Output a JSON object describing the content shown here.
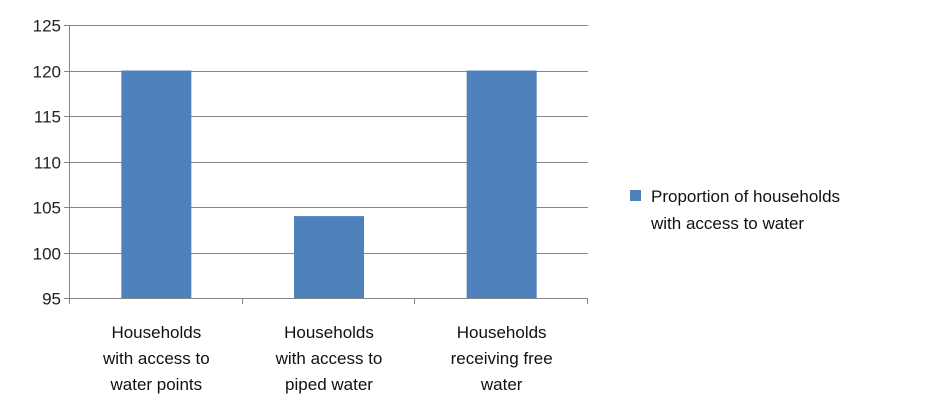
{
  "chart_data": {
    "type": "bar",
    "categories": [
      [
        "Households",
        "with access to",
        "water points"
      ],
      [
        "Households",
        "with access to",
        "piped water"
      ],
      [
        "Households",
        "receiving free",
        "water"
      ]
    ],
    "series": [
      {
        "name": [
          "Proportion of households",
          "with access to water"
        ],
        "values": [
          120,
          104,
          120
        ],
        "color": "#4F81BD"
      }
    ],
    "ylim": [
      95,
      125
    ],
    "yticks": [
      95,
      100,
      105,
      110,
      115,
      120,
      125
    ],
    "grid": true,
    "legend": "right",
    "colors": {
      "grid": "#868686",
      "axis": "#868686",
      "bar": "#4F81BD"
    }
  }
}
